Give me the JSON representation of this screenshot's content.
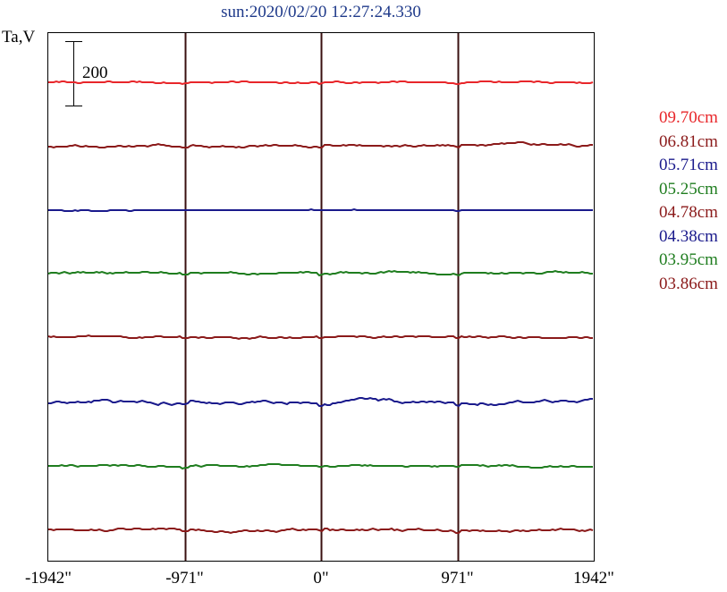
{
  "chart_data": {
    "type": "line",
    "title": "sun:2020/02/20 12:27:24.330",
    "ylabel": "Ta,V",
    "scale_bar_label": "200",
    "x_ticks": [
      "-1942\"",
      "-971\"",
      "0\"",
      "971\"",
      "1942\""
    ],
    "x_tick_values": [
      -1942,
      -971,
      0,
      971,
      1942
    ],
    "xlim": [
      -1942,
      1942
    ],
    "vertical_markers": [
      -971,
      0,
      971
    ],
    "series": [
      {
        "name": "09.70cm",
        "color": "#e8262a",
        "baseline": 92,
        "noise": 1.0,
        "seed": 11
      },
      {
        "name": "06.81cm",
        "color": "#8b1a1a",
        "baseline": 163,
        "noise": 1.6,
        "seed": 23
      },
      {
        "name": "05.71cm",
        "color": "#1a1a8c",
        "baseline": 235,
        "noise": 0.4,
        "seed": 37
      },
      {
        "name": "05.25cm",
        "color": "#1f7d1f",
        "baseline": 305,
        "noise": 1.5,
        "seed": 41
      },
      {
        "name": "04.78cm",
        "color": "#8b1a1a",
        "baseline": 377,
        "noise": 1.2,
        "seed": 53
      },
      {
        "name": "04.38cm",
        "color": "#1a1a8c",
        "baseline": 450,
        "noise": 2.2,
        "seed": 67
      },
      {
        "name": "03.95cm",
        "color": "#1f7d1f",
        "baseline": 521,
        "noise": 1.2,
        "seed": 79
      },
      {
        "name": "03.86cm",
        "color": "#8b1a1a",
        "baseline": 593,
        "noise": 1.6,
        "seed": 83
      }
    ],
    "grid": false,
    "legend_position": "right"
  }
}
